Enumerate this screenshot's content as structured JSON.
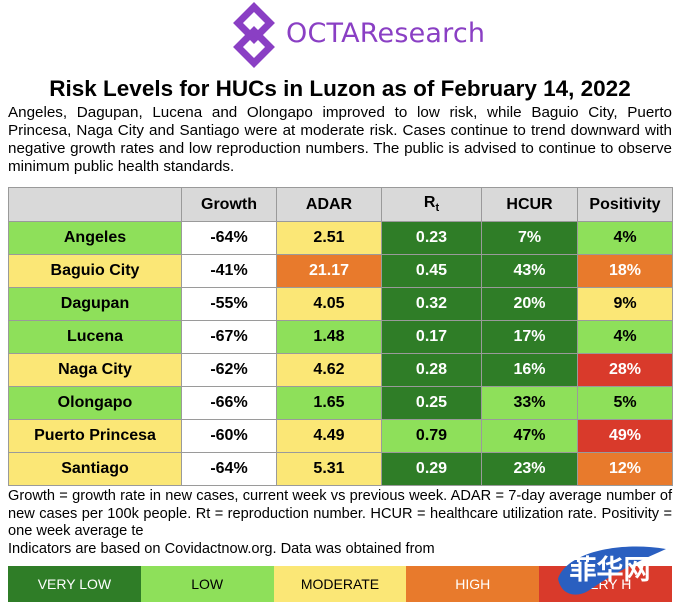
{
  "logo": {
    "text": "OCTAResearch"
  },
  "title": "Risk Levels for HUCs in Luzon as of February 14, 2022",
  "subtitle": "Angeles, Dagupan, Lucena and Olongapo improved to low risk, while Baguio City, Puerto Princesa, Naga City and Santiago were at moderate risk. Cases continue to trend downward with negative growth rates and low reproduction numbers. The public is advised to continue to observe minimum public health standards.",
  "table": {
    "headers": [
      "Growth",
      "ADAR",
      "Rt",
      "HCUR",
      "Positivity"
    ],
    "rows": [
      {
        "name": "Angeles",
        "cells": [
          "-64%",
          "2.51",
          "0.23",
          "7%",
          "4%"
        ],
        "name_color": "#8ee05a",
        "colors": [
          "#ffffff",
          "#fbe776",
          "#2f7d27",
          "#2f7d27",
          "#8ee05a"
        ]
      },
      {
        "name": "Baguio City",
        "cells": [
          "-41%",
          "21.17",
          "0.45",
          "43%",
          "18%"
        ],
        "name_color": "#fbe776",
        "colors": [
          "#ffffff",
          "#e87a2c",
          "#2f7d27",
          "#2f7d27",
          "#e87a2c"
        ]
      },
      {
        "name": "Dagupan",
        "cells": [
          "-55%",
          "4.05",
          "0.32",
          "20%",
          "9%"
        ],
        "name_color": "#8ee05a",
        "colors": [
          "#ffffff",
          "#fbe776",
          "#2f7d27",
          "#2f7d27",
          "#fbe776"
        ]
      },
      {
        "name": "Lucena",
        "cells": [
          "-67%",
          "1.48",
          "0.17",
          "17%",
          "4%"
        ],
        "name_color": "#8ee05a",
        "colors": [
          "#ffffff",
          "#8ee05a",
          "#2f7d27",
          "#2f7d27",
          "#8ee05a"
        ]
      },
      {
        "name": "Naga City",
        "cells": [
          "-62%",
          "4.62",
          "0.28",
          "16%",
          "28%"
        ],
        "name_color": "#fbe776",
        "colors": [
          "#ffffff",
          "#fbe776",
          "#2f7d27",
          "#2f7d27",
          "#d93a2b"
        ]
      },
      {
        "name": "Olongapo",
        "cells": [
          "-66%",
          "1.65",
          "0.25",
          "33%",
          "5%"
        ],
        "name_color": "#8ee05a",
        "colors": [
          "#ffffff",
          "#8ee05a",
          "#2f7d27",
          "#8ee05a",
          "#8ee05a"
        ]
      },
      {
        "name": "Puerto Princesa",
        "cells": [
          "-60%",
          "4.49",
          "0.79",
          "47%",
          "49%"
        ],
        "name_color": "#fbe776",
        "colors": [
          "#ffffff",
          "#fbe776",
          "#8ee05a",
          "#8ee05a",
          "#d93a2b"
        ]
      },
      {
        "name": "Santiago",
        "cells": [
          "-64%",
          "5.31",
          "0.29",
          "23%",
          "12%"
        ],
        "name_color": "#fbe776",
        "colors": [
          "#ffffff",
          "#fbe776",
          "#2f7d27",
          "#2f7d27",
          "#e87a2c"
        ]
      }
    ]
  },
  "footer": "Growth = growth rate in new cases, current week vs previous week. ADAR = 7-day average number of new cases per 100k people. Rt = reproduction number. HCUR = healthcare utilization rate. Positivity = one week average te",
  "footer_end": "Indicators are based on Covidactnow.org. Data was obtained from",
  "legend": [
    {
      "label": "VERY LOW",
      "color": "#2f7d27",
      "text_color": "#ffffff"
    },
    {
      "label": "LOW",
      "color": "#8ee05a",
      "text_color": "#000000"
    },
    {
      "label": "MODERATE",
      "color": "#fbe776",
      "text_color": "#000000"
    },
    {
      "label": "HIGH",
      "color": "#e87a2c",
      "text_color": "#ffffff"
    },
    {
      "label": "VERY H",
      "color": "#d93a2b",
      "text_color": "#ffffff"
    }
  ],
  "watermark": {
    "text": "菲华网"
  }
}
